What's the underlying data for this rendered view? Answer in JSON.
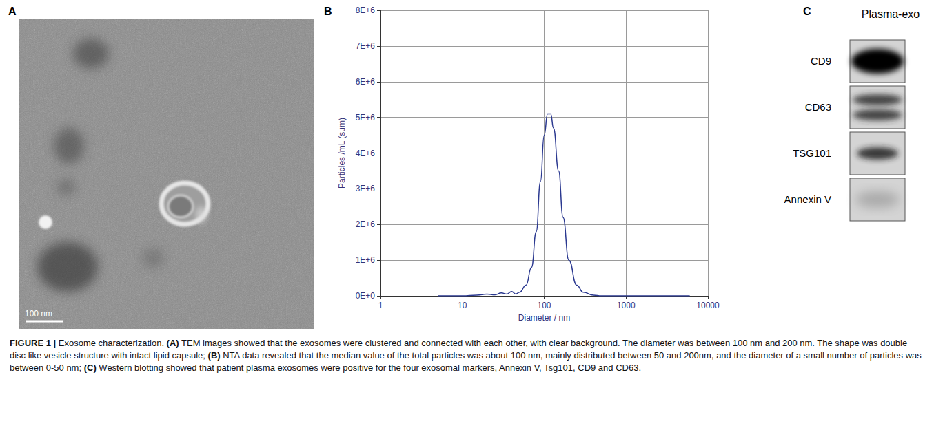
{
  "chart_data": {
    "type": "line",
    "letter": "B",
    "x_label": "Diameter / nm",
    "y_label": "Particles /mL (sum)",
    "log": "x",
    "grid": true,
    "color": "#2b3990",
    "xlim": [
      1,
      10000
    ],
    "xticks": [
      1,
      10,
      100,
      1000,
      10000
    ],
    "ylim": [
      0,
      8000000
    ],
    "yticks": [
      {
        "value": 0,
        "label": "0E+0"
      },
      {
        "value": 1000000,
        "label": "1E+6"
      },
      {
        "value": 2000000,
        "label": "2E+6"
      },
      {
        "value": 3000000,
        "label": "3E+6"
      },
      {
        "value": 4000000,
        "label": "4E+6"
      },
      {
        "value": 5000000,
        "label": "5E+6"
      },
      {
        "value": 6000000,
        "label": "6E+6"
      },
      {
        "value": 7000000,
        "label": "7E+6"
      },
      {
        "value": 8000000,
        "label": "8E+6"
      }
    ],
    "x": [
      5,
      10,
      15,
      20,
      25,
      30,
      35,
      40,
      45,
      50,
      60,
      70,
      80,
      90,
      100,
      110,
      120,
      130,
      150,
      170,
      200,
      250,
      300,
      400,
      500,
      1000,
      2000,
      5000,
      6000
    ],
    "values": [
      0,
      0,
      20000,
      50000,
      30000,
      80000,
      50000,
      120000,
      50000,
      100000,
      300000,
      800000,
      1800000,
      3200000,
      4500000,
      5100000,
      5100000,
      4700000,
      3500000,
      2200000,
      1000000,
      300000,
      100000,
      20000,
      0,
      0,
      0,
      0,
      0
    ]
  },
  "image_panel": {
    "letter": "A",
    "scale_bar": "100 nm"
  },
  "blot_panel": {
    "letter": "C",
    "title": "Plasma-exo",
    "bands": [
      "CD9",
      "CD63",
      "TSG101",
      "Annexin V"
    ]
  },
  "caption": {
    "figure_label": "FIGURE 1 |",
    "title": "Exosome characterization.",
    "parts": [
      {
        "tag": "(A)",
        "text": "TEM images showed that the exosomes were clustered and connected with each other, with clear background. The diameter was between 100 nm and 200 nm. The shape was double disc like vesicle structure with intact lipid capsule;"
      },
      {
        "tag": "(B)",
        "text": "NTA data revealed that the median value of the total particles was about 100 nm, mainly distributed between 50 and 200nm, and the diameter of a small number of particles was between 0-50 nm;"
      },
      {
        "tag": "(C)",
        "text": "Western blotting showed that patient plasma exosomes were positive for the four exosomal markers, Annexin V, Tsg101, CD9 and CD63."
      }
    ]
  }
}
